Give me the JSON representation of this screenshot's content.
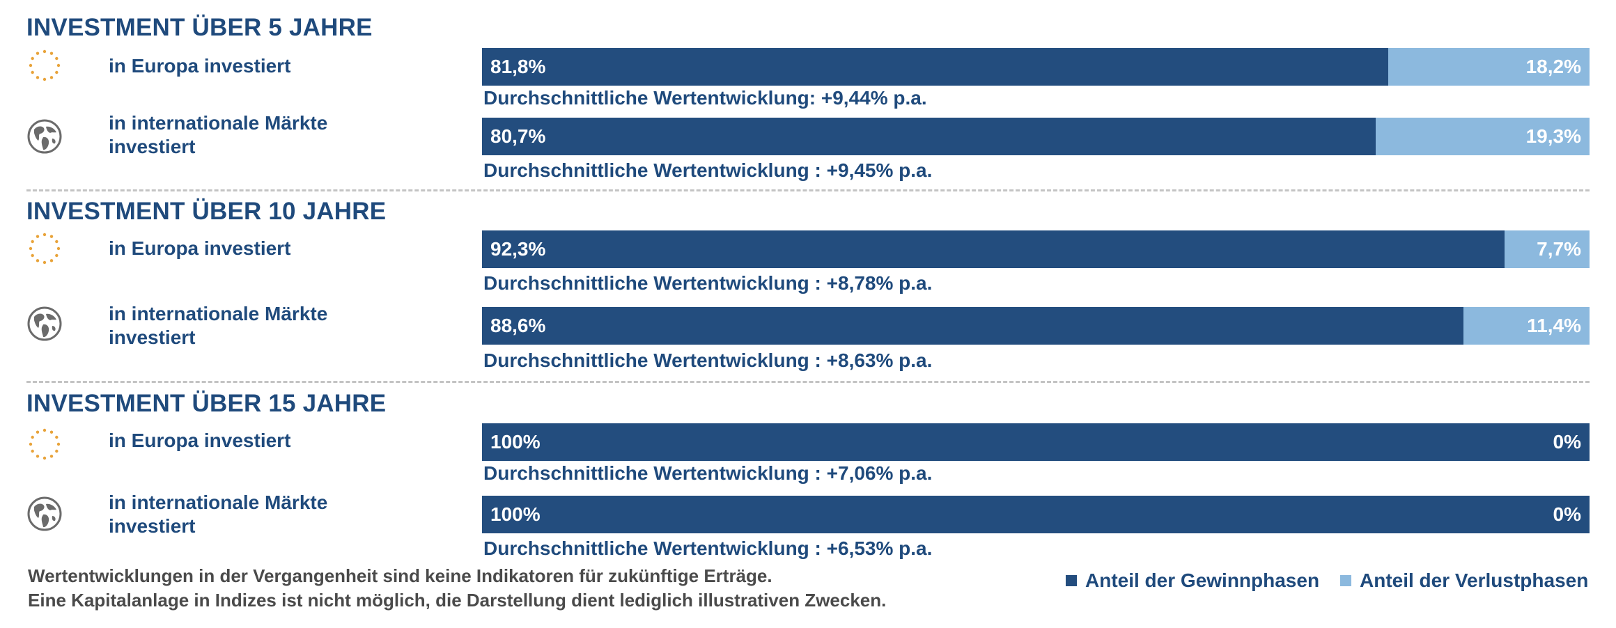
{
  "colors": {
    "gain": "#234d7e",
    "loss": "#8cb9de",
    "heading": "#1f4a7c",
    "europe_star": "#e8a33a",
    "globe": "#6b6b6b"
  },
  "chart_data": [
    {
      "type": "bar",
      "stacked": true,
      "orientation": "horizontal",
      "title": "INVESTMENT ÜBER 5 JAHRE",
      "categories": [
        "in Europa investiert",
        "in internationale Märkte investiert"
      ],
      "series": [
        {
          "name": "Anteil der Gewinnphasen",
          "values": [
            81.8,
            80.7
          ]
        },
        {
          "name": "Anteil der Verlustphasen",
          "values": [
            18.2,
            19.3
          ]
        }
      ],
      "xlim": [
        0,
        100
      ]
    },
    {
      "type": "bar",
      "stacked": true,
      "orientation": "horizontal",
      "title": "INVESTMENT ÜBER 10 JAHRE",
      "categories": [
        "in Europa investiert",
        "in internationale Märkte investiert"
      ],
      "series": [
        {
          "name": "Anteil der Gewinnphasen",
          "values": [
            92.3,
            88.6
          ]
        },
        {
          "name": "Anteil der Verlustphasen",
          "values": [
            7.7,
            11.4
          ]
        }
      ],
      "xlim": [
        0,
        100
      ]
    },
    {
      "type": "bar",
      "stacked": true,
      "orientation": "horizontal",
      "title": "INVESTMENT ÜBER 15 JAHRE",
      "categories": [
        "in Europa investiert",
        "in internationale Märkte investiert"
      ],
      "series": [
        {
          "name": "Anteil der Gewinnphasen",
          "values": [
            100,
            100
          ]
        },
        {
          "name": "Anteil der Verlustphasen",
          "values": [
            0,
            0
          ]
        }
      ],
      "xlim": [
        0,
        100
      ]
    }
  ],
  "sections": [
    {
      "title": "INVESTMENT ÜBER 5 JAHRE",
      "rows": [
        {
          "icon": "europe-stars-icon",
          "label": "in Europa investiert",
          "gain": 81.8,
          "gain_label": "81,8%",
          "loss_label": "18,2%",
          "perf": "Durchschnittliche Wertentwicklung: +9,44% p.a."
        },
        {
          "icon": "globe-icon",
          "label": "in internationale Märkte investiert",
          "gain": 80.7,
          "gain_label": "80,7%",
          "loss_label": "19,3%",
          "perf": "Durchschnittliche Wertentwicklung : +9,45% p.a."
        }
      ]
    },
    {
      "title": "INVESTMENT ÜBER 10 JAHRE",
      "rows": [
        {
          "icon": "europe-stars-icon",
          "label": "in Europa investiert",
          "gain": 92.3,
          "gain_label": "92,3%",
          "loss_label": "7,7%",
          "perf": "Durchschnittliche Wertentwicklung : +8,78% p.a."
        },
        {
          "icon": "globe-icon",
          "label": "in internationale Märkte investiert",
          "gain": 88.6,
          "gain_label": "88,6%",
          "loss_label": "11,4%",
          "perf": "Durchschnittliche Wertentwicklung : +8,63% p.a."
        }
      ]
    },
    {
      "title": "INVESTMENT ÜBER 15 JAHRE",
      "rows": [
        {
          "icon": "europe-stars-icon",
          "label": "in Europa investiert",
          "gain": 100,
          "gain_label": "100%",
          "loss_label": "0%",
          "perf": "Durchschnittliche Wertentwicklung : +7,06% p.a."
        },
        {
          "icon": "globe-icon",
          "label": "in internationale Märkte investiert",
          "gain": 100,
          "gain_label": "100%",
          "loss_label": "0%",
          "perf": "Durchschnittliche Wertentwicklung : +6,53% p.a."
        }
      ]
    }
  ],
  "footnote": {
    "line1": "Wertentwicklungen in der Vergangenheit sind keine Indikatoren für zukünftige Erträge.",
    "line2": "Eine Kapitalanlage in Indizes ist nicht möglich, die Darstellung dient lediglich illustrativen Zwecken."
  },
  "legend": {
    "gain": "Anteil der Gewinnphasen",
    "loss": "Anteil der Verlustphasen"
  }
}
